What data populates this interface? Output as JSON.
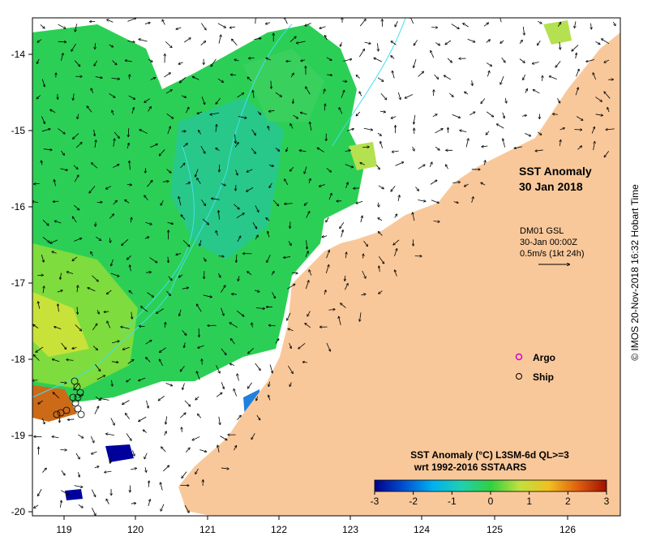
{
  "title": "SST Anomaly",
  "date": "30 Jan 2018",
  "current_source": "DM01 GSL",
  "current_time": "30-Jan 00:00Z",
  "current_scale": "0.5m/s (1kt 24h)",
  "legend": {
    "argo_label": "Argo",
    "ship_label": "Ship",
    "argo_color": "#d000d0",
    "ship_color": "#000000"
  },
  "colorbar": {
    "title": "SST Anomaly (°C) L3SM-6d QL>=3",
    "subtitle": "wrt 1992-2016 SSTAARS",
    "ticks": [
      "-3",
      "-2",
      "-1",
      "0",
      "1",
      "2",
      "3"
    ],
    "colors": [
      "#00008c",
      "#0050d0",
      "#00b0f0",
      "#20d0b0",
      "#30d040",
      "#c0e040",
      "#f0c020",
      "#e06010",
      "#a01000"
    ]
  },
  "axes": {
    "lat_labels": [
      "-14",
      "-15",
      "-16",
      "-17",
      "-18",
      "-19",
      "-20"
    ],
    "lon_labels": [
      "119",
      "120",
      "121",
      "122",
      "123",
      "124",
      "125",
      "126"
    ]
  },
  "credit": "© IMOS 20-Nov-2018 16:32 Hobart Time",
  "colors": {
    "land": "#f9c89a",
    "ocean_nodata": "#ffffff",
    "contour": "#40e0f0"
  }
}
